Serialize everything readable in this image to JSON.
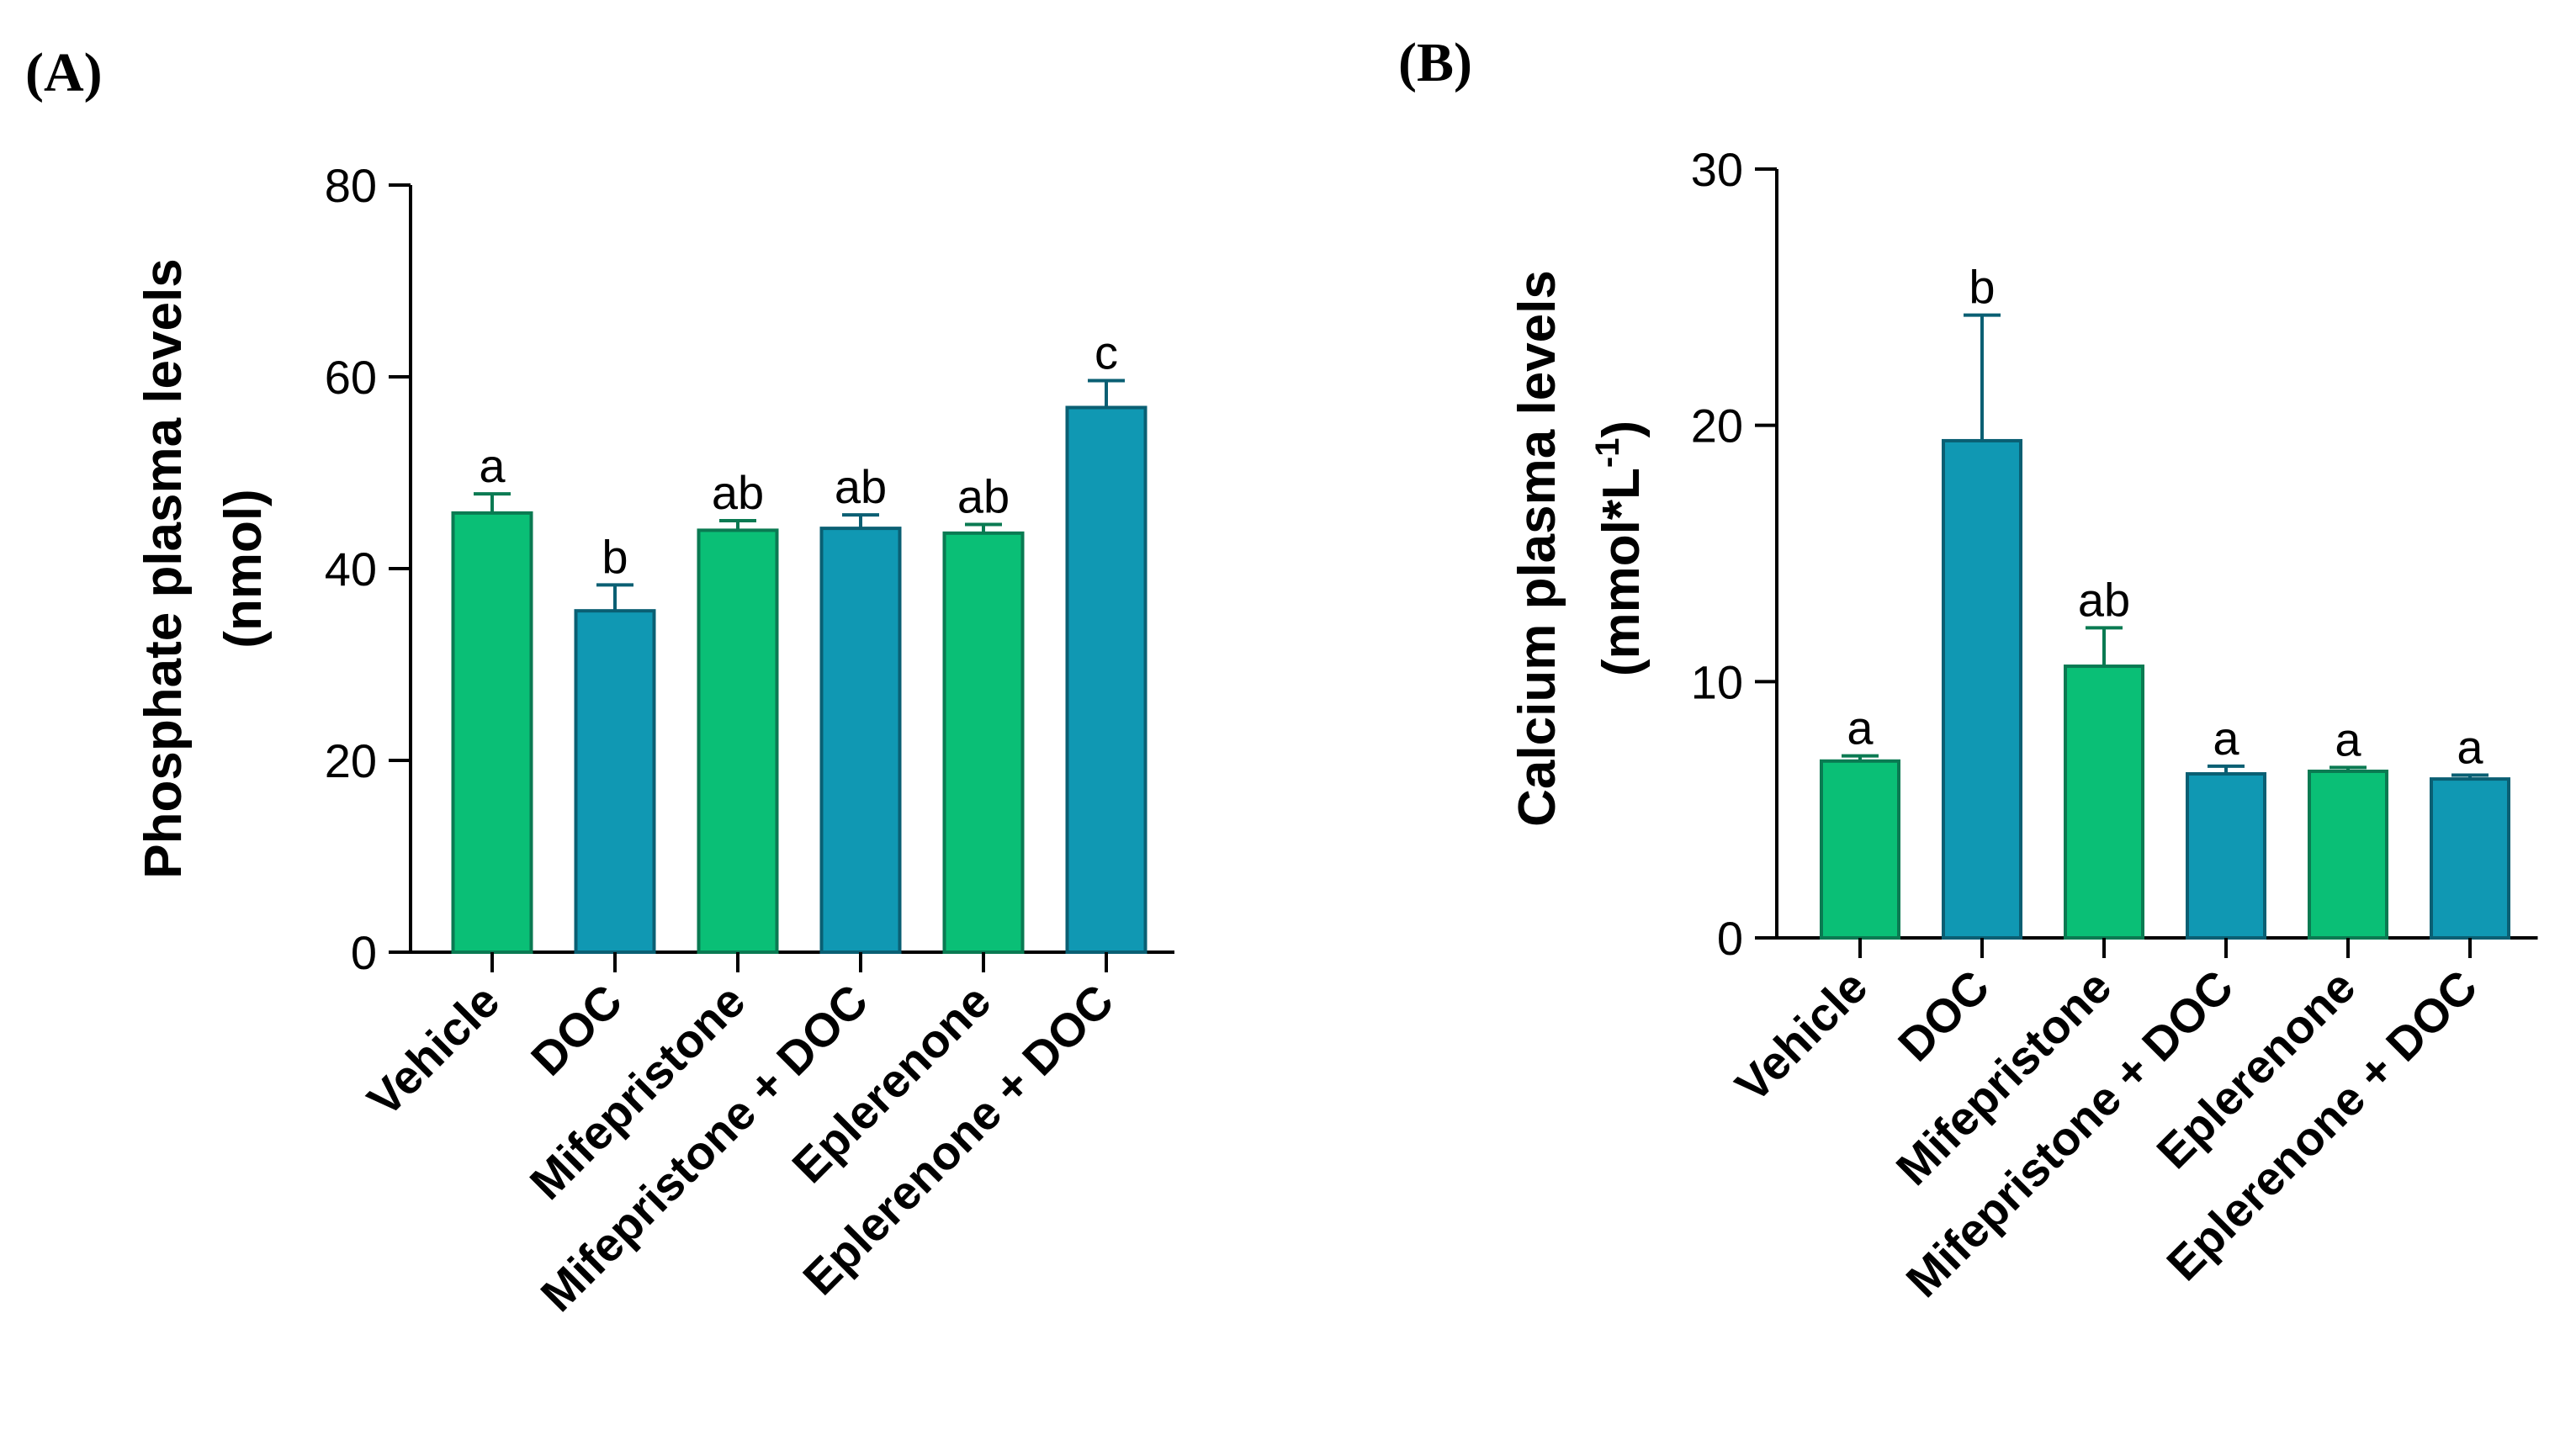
{
  "colors": {
    "green_fill": "#0ABF76",
    "green_stroke": "#0A7A52",
    "blue_fill": "#1098B3",
    "blue_stroke": "#0A5F73"
  },
  "chart_data": [
    {
      "panel": "(A)",
      "type": "bar",
      "title": "",
      "xlabel": "",
      "ylabel_line1": "Phosphate plasma levels",
      "ylabel_line2": "(nmol)",
      "ylim": [
        0,
        80
      ],
      "yticks": [
        0,
        20,
        40,
        60,
        80
      ],
      "categories": [
        "Vehicle",
        "DOC",
        "Mifepristone",
        "Mifepristone + DOC",
        "Eplerenone",
        "Eplerenone + DOC"
      ],
      "values": [
        45.8,
        35.6,
        44.0,
        44.2,
        43.7,
        56.8
      ],
      "errors": [
        2.0,
        2.7,
        1.0,
        1.4,
        0.9,
        2.8
      ],
      "significance": [
        "a",
        "b",
        "ab",
        "ab",
        "ab",
        "c"
      ],
      "bar_colors": [
        "green",
        "blue",
        "green",
        "blue",
        "green",
        "blue"
      ]
    },
    {
      "panel": "(B)",
      "type": "bar",
      "title": "",
      "xlabel": "",
      "ylabel_line1": "Calcium plasma levels",
      "ylabel_line2_prefix": "(mmol*L",
      "ylabel_line2_sup": "-1",
      "ylabel_line2_suffix": ")",
      "ylim": [
        0,
        30
      ],
      "yticks": [
        0,
        10,
        20,
        30
      ],
      "categories": [
        "Vehicle",
        "DOC",
        "Mifepristone",
        "Mifepristone + DOC",
        "Eplerenone",
        "Eplerenone + DOC"
      ],
      "values": [
        6.9,
        19.4,
        10.6,
        6.4,
        6.5,
        6.2
      ],
      "errors": [
        0.2,
        4.9,
        1.5,
        0.3,
        0.15,
        0.15
      ],
      "significance": [
        "a",
        "b",
        "ab",
        "a",
        "a",
        "a"
      ],
      "bar_colors": [
        "green",
        "blue",
        "green",
        "blue",
        "green",
        "blue"
      ]
    }
  ]
}
